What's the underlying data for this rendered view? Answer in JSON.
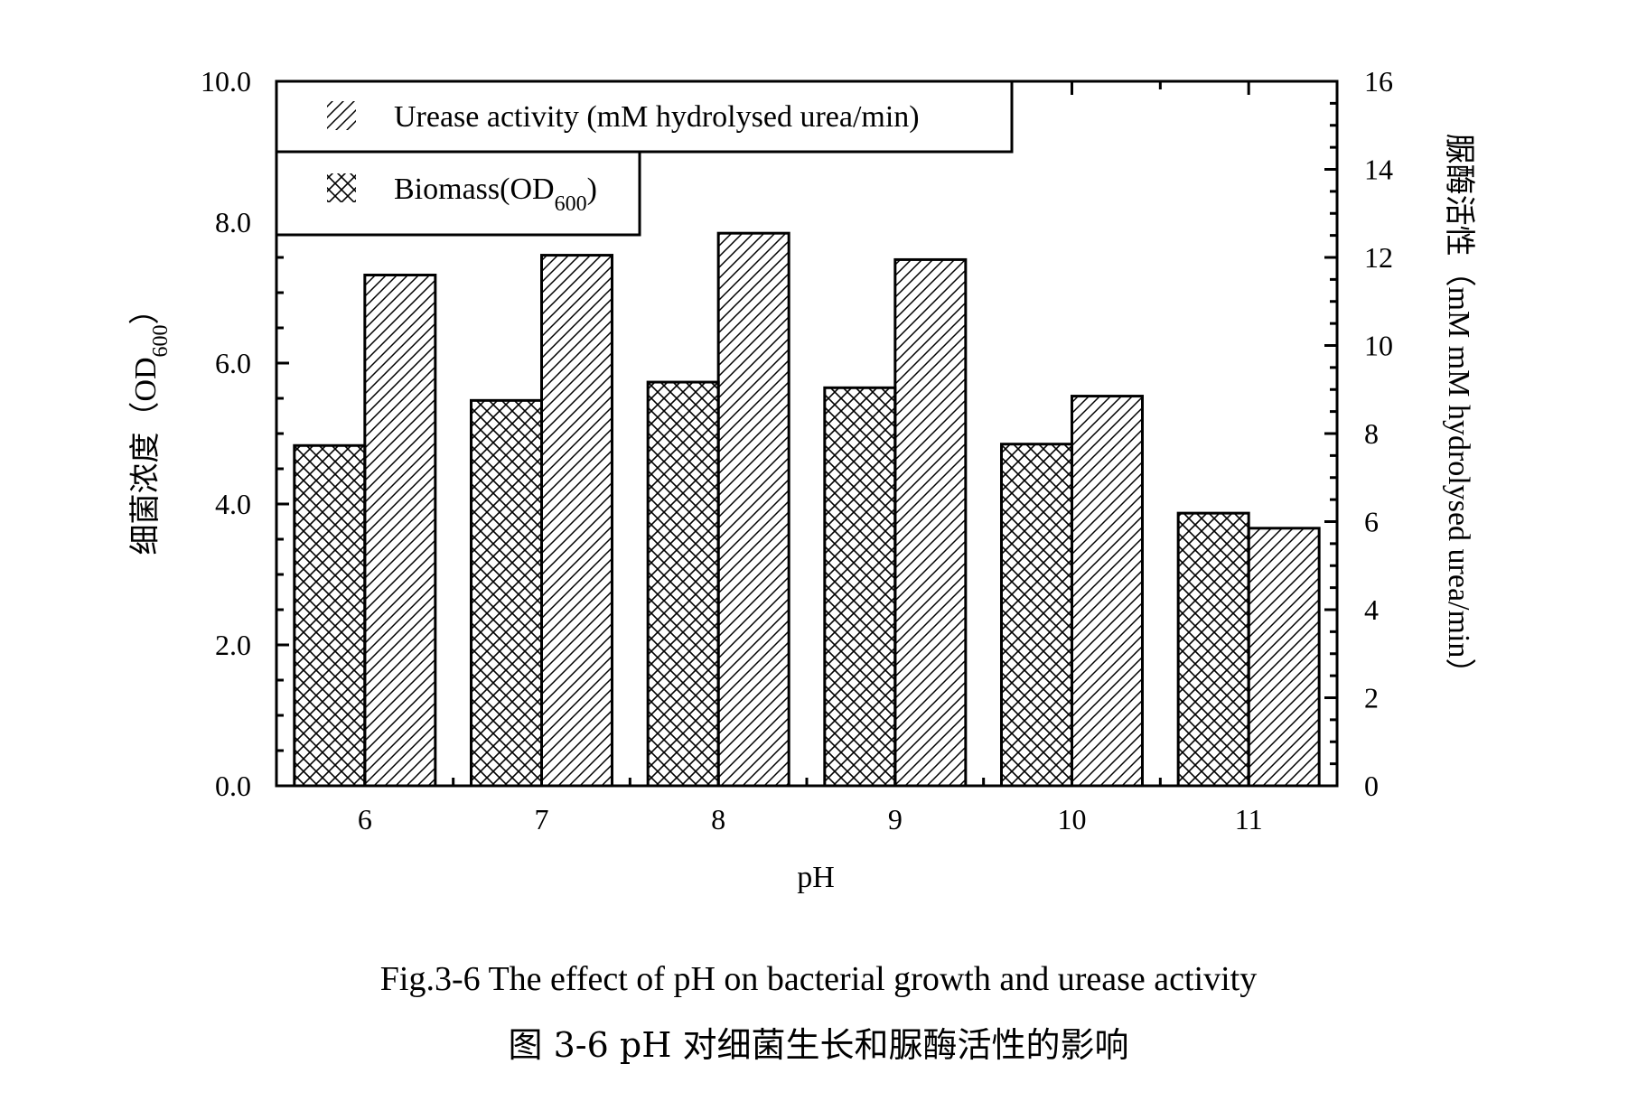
{
  "chart_data": {
    "type": "bar",
    "categories": [
      "6",
      "7",
      "8",
      "9",
      "10",
      "11"
    ],
    "series": [
      {
        "name": "Biomass(OD600)",
        "axis": "left",
        "pattern": "crosshatch",
        "values": [
          4.83,
          5.47,
          5.73,
          5.65,
          4.85,
          3.87
        ]
      },
      {
        "name": "Urease activity (mM hydrolysed urea/min)",
        "axis": "right",
        "pattern": "diagonal",
        "values": [
          11.6,
          12.05,
          12.55,
          11.95,
          8.85,
          5.85
        ]
      }
    ],
    "xlabel": "pH",
    "ylabel_left": {
      "main": "细菌浓度（OD",
      "sub": "600",
      "end": "）"
    },
    "ylabel_right": "脲酶活性（mM mM hydrolysed urea/min）",
    "ylim_left": [
      0,
      10
    ],
    "ylim_right": [
      0,
      16
    ],
    "left_ticks": [
      "0.0",
      "2.0",
      "4.0",
      "6.0",
      "8.0",
      "10.0"
    ],
    "right_ticks": [
      "0",
      "2",
      "4",
      "6",
      "8",
      "10",
      "12",
      "14",
      "16"
    ],
    "legend": {
      "position": "top-left",
      "entries": [
        {
          "main": "Urease activity (mM hydrolysed urea/min)",
          "sub": "",
          "end": "",
          "pattern": "diagonal"
        },
        {
          "main": "Biomass(OD",
          "sub": "600",
          "end": ")",
          "pattern": "crosshatch"
        }
      ]
    },
    "grid": false
  },
  "caption": {
    "en": "Fig.3-6 The effect of pH on bacterial growth and urease activity",
    "zh": "图 3-6 pH 对细菌生长和脲酶活性的影响"
  }
}
